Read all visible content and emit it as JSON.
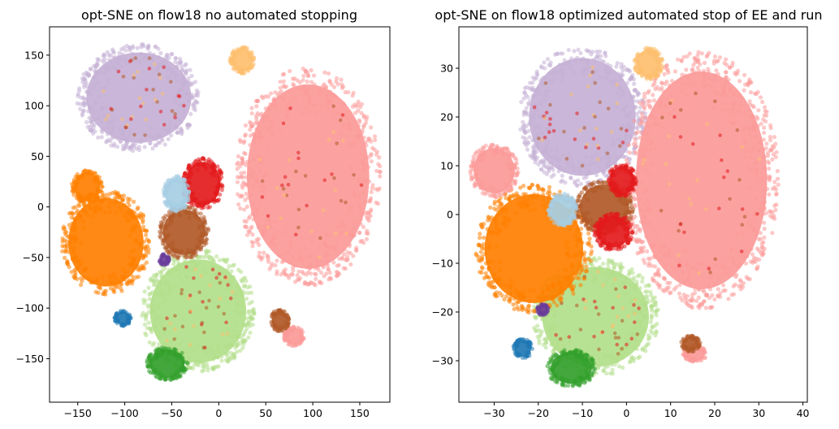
{
  "chart_data": [
    {
      "type": "scatter",
      "title": "opt-SNE on flow18 no automated stopping",
      "xlabel": "",
      "ylabel": "",
      "xlim": [
        -180,
        182
      ],
      "ylim": [
        -193,
        178
      ],
      "xticks": [
        -150,
        -100,
        -50,
        0,
        50,
        100,
        150
      ],
      "yticks": [
        -150,
        -100,
        -50,
        0,
        50,
        100,
        150
      ],
      "grid": false,
      "clusters": [
        {
          "color": "#c5b0d5",
          "center": [
            -85,
            108
          ],
          "radius": [
            60,
            48
          ]
        },
        {
          "color": "#fb9a99",
          "center": [
            95,
            30
          ],
          "radius": [
            70,
            98
          ]
        },
        {
          "color": "#b2df8a",
          "center": [
            -22,
            -103
          ],
          "radius": [
            55,
            55
          ]
        },
        {
          "color": "#ff7f00",
          "center": [
            -120,
            -35
          ],
          "radius": [
            43,
            47
          ]
        },
        {
          "color": "#ff7f00",
          "center": [
            -140,
            20
          ],
          "radius": [
            15,
            15
          ]
        },
        {
          "color": "#b15928",
          "center": [
            -37,
            -25
          ],
          "radius": [
            24,
            24
          ]
        },
        {
          "color": "#e31a1c",
          "center": [
            -17,
            23
          ],
          "radius": [
            20,
            23
          ]
        },
        {
          "color": "#a6cee3",
          "center": [
            -45,
            13
          ],
          "radius": [
            13,
            16
          ]
        },
        {
          "color": "#fdbf6f",
          "center": [
            25,
            145
          ],
          "radius": [
            12,
            12
          ]
        },
        {
          "color": "#33a02c",
          "center": [
            -55,
            -155
          ],
          "radius": [
            20,
            15
          ]
        },
        {
          "color": "#1f78b4",
          "center": [
            -102,
            -110
          ],
          "radius": [
            8,
            7
          ]
        },
        {
          "color": "#6a3d9a",
          "center": [
            -58,
            -52
          ],
          "radius": [
            5,
            5
          ]
        },
        {
          "color": "#fb9a99",
          "center": [
            80,
            -128
          ],
          "radius": [
            10,
            9
          ]
        },
        {
          "color": "#b15928",
          "center": [
            65,
            -112
          ],
          "radius": [
            9,
            10
          ]
        }
      ]
    },
    {
      "type": "scatter",
      "title": "opt-SNE on flow18 optimized automated stop of EE and run",
      "xlabel": "",
      "ylabel": "",
      "xlim": [
        -38,
        41
      ],
      "ylim": [
        -38.5,
        38.5
      ],
      "xticks": [
        -30,
        -20,
        -10,
        0,
        10,
        20,
        30,
        40
      ],
      "yticks": [
        -30,
        -20,
        -10,
        0,
        10,
        20,
        30
      ],
      "grid": false,
      "clusters": [
        {
          "color": "#c5b0d5",
          "center": [
            -10,
            20
          ],
          "radius": [
            13,
            13
          ]
        },
        {
          "color": "#fb9a99",
          "center": [
            17,
            7
          ],
          "radius": [
            16,
            24
          ]
        },
        {
          "color": "#b2df8a",
          "center": [
            -7,
            -21
          ],
          "radius": [
            13,
            11
          ]
        },
        {
          "color": "#ff7f00",
          "center": [
            -21,
            -7
          ],
          "radius": [
            12,
            12
          ]
        },
        {
          "color": "#fb9a99",
          "center": [
            -30,
            9
          ],
          "radius": [
            5,
            5
          ]
        },
        {
          "color": "#b15928",
          "center": [
            -5,
            1.5
          ],
          "radius": [
            6,
            5
          ]
        },
        {
          "color": "#e31a1c",
          "center": [
            -3,
            -3.5
          ],
          "radius": [
            4,
            3.5
          ]
        },
        {
          "color": "#e31a1c",
          "center": [
            -1,
            7
          ],
          "radius": [
            3,
            3
          ]
        },
        {
          "color": "#a6cee3",
          "center": [
            -14.5,
            1
          ],
          "radius": [
            3,
            3
          ]
        },
        {
          "color": "#fdbf6f",
          "center": [
            5,
            31
          ],
          "radius": [
            3,
            3
          ]
        },
        {
          "color": "#33a02c",
          "center": [
            -12.5,
            -31.5
          ],
          "radius": [
            5,
            3.5
          ]
        },
        {
          "color": "#1f78b4",
          "center": [
            -23.5,
            -27.5
          ],
          "radius": [
            2,
            1.8
          ]
        },
        {
          "color": "#6a3d9a",
          "center": [
            -19,
            -19.5
          ],
          "radius": [
            1.2,
            1
          ]
        },
        {
          "color": "#fb9a99",
          "center": [
            15.5,
            -28.5
          ],
          "radius": [
            2.5,
            1.6
          ]
        },
        {
          "color": "#b15928",
          "center": [
            14.5,
            -26.5
          ],
          "radius": [
            2,
            1.5
          ]
        }
      ]
    }
  ]
}
